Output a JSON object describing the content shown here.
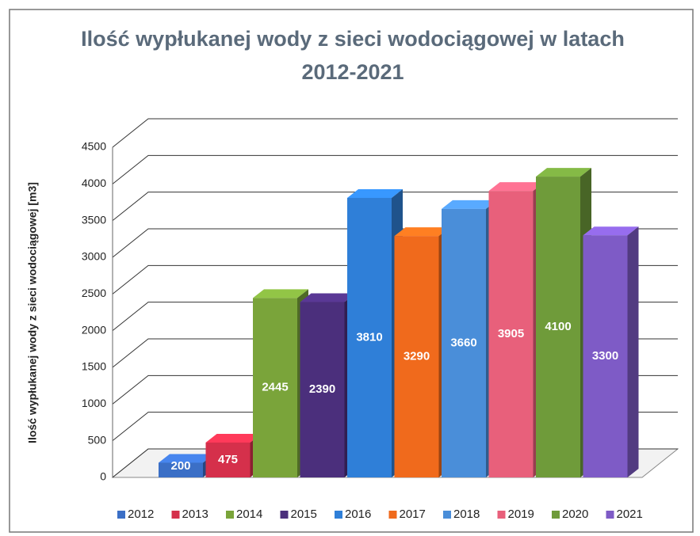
{
  "chart_data": {
    "type": "bar",
    "title": "Ilość wypłukanej wody z sieci wodociągowej w latach 2012-2021",
    "y_label": "Ilość wypłukanej wody z sieci wodociągowej [m3]",
    "ylim": [
      0,
      4500
    ],
    "yticks": [
      0,
      500,
      1000,
      1500,
      2000,
      2500,
      3000,
      3500,
      4000,
      4500
    ],
    "grid": true,
    "legend": "bottom",
    "series": [
      {
        "name": "2012",
        "color": "#3b6fc6",
        "values": [
          200
        ]
      },
      {
        "name": "2013",
        "color": "#d5304b",
        "values": [
          475
        ]
      },
      {
        "name": "2014",
        "color": "#7aa43a",
        "values": [
          2445
        ]
      },
      {
        "name": "2015",
        "color": "#4b2f7c",
        "values": [
          2390
        ]
      },
      {
        "name": "2016",
        "color": "#2f7fd8",
        "values": [
          3810
        ]
      },
      {
        "name": "2017",
        "color": "#f06a1c",
        "values": [
          3290
        ]
      },
      {
        "name": "2018",
        "color": "#4a8ed9",
        "values": [
          3660
        ]
      },
      {
        "name": "2019",
        "color": "#e8607b",
        "values": [
          3905
        ]
      },
      {
        "name": "2020",
        "color": "#6f9b3a",
        "values": [
          4100
        ]
      },
      {
        "name": "2021",
        "color": "#7e5bc6",
        "values": [
          3300
        ]
      }
    ]
  }
}
